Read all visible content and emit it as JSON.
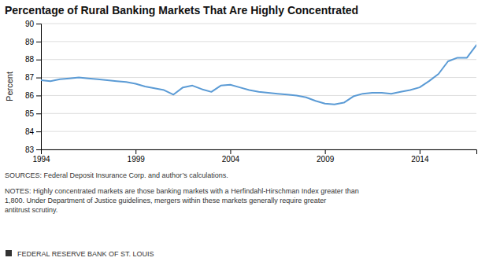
{
  "chart_data": {
    "type": "line",
    "title": "Percentage of Rural Banking Markets That Are Highly Concentrated",
    "y_label": "Percent",
    "x": [
      1994,
      1994.5,
      1995,
      1995.5,
      1996,
      1996.5,
      1997,
      1997.5,
      1998,
      1998.5,
      1999,
      1999.5,
      2000,
      2000.5,
      2001,
      2001.5,
      2002,
      2002.5,
      2003,
      2003.5,
      2004,
      2004.5,
      2005,
      2005.5,
      2006,
      2006.5,
      2007,
      2007.5,
      2008,
      2008.5,
      2009,
      2009.5,
      2010,
      2010.5,
      2011,
      2011.5,
      2012,
      2012.5,
      2013,
      2013.5,
      2014,
      2014.5,
      2015,
      2015.5,
      2016,
      2016.5,
      2017
    ],
    "values": [
      86.85,
      86.8,
      86.9,
      86.95,
      87.0,
      86.95,
      86.9,
      86.85,
      86.8,
      86.75,
      86.65,
      86.5,
      86.4,
      86.3,
      86.05,
      86.45,
      86.55,
      86.35,
      86.2,
      86.55,
      86.6,
      86.45,
      86.3,
      86.2,
      86.15,
      86.1,
      86.05,
      86.0,
      85.9,
      85.7,
      85.55,
      85.5,
      85.6,
      85.95,
      86.1,
      86.15,
      86.15,
      86.1,
      86.2,
      86.3,
      86.45,
      86.8,
      87.2,
      87.9,
      88.1,
      88.1,
      88.8
    ],
    "color": "#5b9bd5",
    "xlim": [
      1994,
      2017
    ],
    "xticks": [
      1994,
      1999,
      2004,
      2009,
      2014
    ],
    "ylim": [
      83,
      90
    ],
    "yticks": [
      83,
      84,
      85,
      86,
      87,
      88,
      89,
      90
    ],
    "grid": true,
    "annotations": [
      "SOURCES: Federal Deposit Insurance Corp. and author’s calculations.",
      "NOTES: Highly concentrated markets are those banking markets with a Herfindahl-Hirschman Index greater than\n1,800. Under Department of Justice guidelines, mergers within these markets generally require greater\nantitrust scrutiny.",
      "FEDERAL RESERVE BANK OF ST. LOUIS"
    ]
  }
}
